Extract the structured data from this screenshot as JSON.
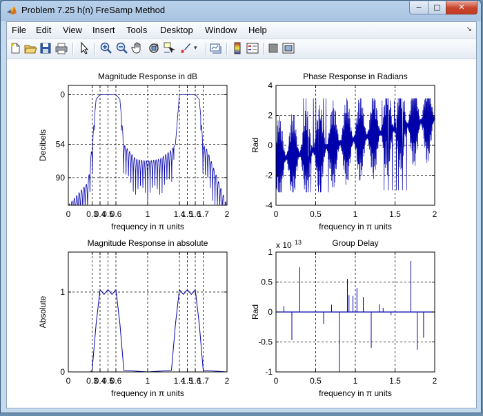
{
  "window": {
    "title": "Problem 7.25 h(n) FreSamp Method",
    "min_label": "−",
    "max_label": "□",
    "close_label": "✕"
  },
  "menubar": {
    "items": [
      "File",
      "Edit",
      "View",
      "Insert",
      "Tools",
      "Desktop",
      "Window",
      "Help"
    ]
  },
  "toolbar": {
    "icons": [
      "new-figure-icon",
      "open-file-icon",
      "save-icon",
      "print-icon",
      "edit-plot-arrow-icon",
      "zoom-in-icon",
      "zoom-out-icon",
      "pan-hand-icon",
      "rotate-3d-icon",
      "data-cursor-icon",
      "brush-icon",
      "brush-dropdown-icon",
      "link-plot-icon",
      "insert-colorbar-icon",
      "insert-legend-icon",
      "hide-plot-tools-icon",
      "show-plot-tools-icon"
    ]
  },
  "colors": {
    "line": "#0000aa",
    "grid": "#000000"
  },
  "chart_data": [
    {
      "type": "line",
      "title": "Magnitude Response in dB",
      "xlabel": "frequency in π units",
      "ylabel": "Decibels",
      "xlim": [
        0,
        2
      ],
      "ylim": [
        -120,
        10
      ],
      "xticks": [
        0,
        0.3,
        0.4,
        0.5,
        0.6,
        1,
        1.4,
        1.5,
        1.6,
        1.7,
        2
      ],
      "xtick_labels": [
        "0",
        "0.3",
        "0.4",
        "0.5",
        "0.6",
        "1",
        "1.4",
        "1.5",
        "1.6",
        "1.7",
        "2"
      ],
      "yticks": [
        0,
        -54,
        -90
      ],
      "ytick_labels": [
        "0",
        "54",
        "90"
      ],
      "grid": true,
      "description_points": {
        "x": [
          0,
          0.25,
          0.3,
          0.35,
          0.4,
          0.5,
          0.6,
          0.65,
          0.7,
          0.85,
          1.0,
          1.15,
          1.3,
          1.35,
          1.4,
          1.5,
          1.6,
          1.65,
          1.7,
          1.75,
          2.0
        ],
        "y": [
          -120,
          -95,
          -54,
          -5,
          0,
          0,
          0,
          -5,
          -54,
          -70,
          -72,
          -70,
          -60,
          -54,
          0,
          0,
          0,
          -5,
          -54,
          -60,
          -120
        ]
      }
    },
    {
      "type": "line",
      "title": "Phase Response in Radians",
      "xlabel": "frequency in π units",
      "ylabel": "Rad",
      "xlim": [
        0,
        2
      ],
      "ylim": [
        -4,
        4
      ],
      "xticks": [
        0,
        0.5,
        1,
        1.5,
        2
      ],
      "xtick_labels": [
        "0",
        "0.5",
        "1",
        "1.5",
        "2"
      ],
      "yticks": [
        4,
        2,
        0,
        -2,
        -4
      ],
      "ytick_labels": [
        "4",
        "2",
        "0",
        "-2",
        "-4"
      ],
      "grid": true
    },
    {
      "type": "line",
      "title": "Magnitude Response in absolute",
      "xlabel": "frequency in π units",
      "ylabel": "Absolute",
      "xlim": [
        0,
        2
      ],
      "ylim": [
        0,
        1.5
      ],
      "xticks": [
        0,
        0.3,
        0.4,
        0.5,
        0.6,
        1,
        1.4,
        1.5,
        1.6,
        1.7,
        2
      ],
      "xtick_labels": [
        "0",
        "0.3",
        "0.4",
        "0.5",
        "0.6",
        "1",
        "1.4",
        "1.5",
        "1.6",
        "1.7",
        "2"
      ],
      "yticks": [
        1,
        0
      ],
      "ytick_labels": [
        "1",
        "0"
      ],
      "grid": true,
      "x": [
        0,
        0.28,
        0.3,
        0.35,
        0.4,
        0.45,
        0.5,
        0.55,
        0.6,
        0.65,
        0.7,
        1.0,
        1.3,
        1.35,
        1.4,
        1.45,
        1.5,
        1.55,
        1.6,
        1.65,
        1.7,
        2.0
      ],
      "y": [
        0,
        0,
        0.02,
        0.6,
        1.03,
        0.97,
        1.03,
        0.97,
        1.03,
        0.6,
        0.02,
        0,
        0.02,
        0.6,
        1.03,
        0.97,
        1.03,
        0.97,
        1.03,
        0.6,
        0.02,
        0
      ]
    },
    {
      "type": "bar",
      "title": "Group Delay",
      "xlabel": "frequency in π units",
      "ylabel": "Rad",
      "exponent_label": "x 10",
      "exponent_power": "13",
      "xlim": [
        0,
        2
      ],
      "ylim": [
        -1,
        1
      ],
      "xticks": [
        0,
        0.5,
        1,
        1.5,
        2
      ],
      "xtick_labels": [
        "0",
        "0.5",
        "1",
        "1.5",
        "2"
      ],
      "yticks": [
        1,
        0.5,
        0,
        -0.5,
        -1
      ],
      "ytick_labels": [
        "1",
        "0.5",
        "0",
        "-0.5",
        "-1"
      ],
      "grid": true,
      "x": [
        0.1,
        0.2,
        0.3,
        0.6,
        0.7,
        0.8,
        0.9,
        0.92,
        0.97,
        1.02,
        1.1,
        1.2,
        1.3,
        1.35,
        1.45,
        1.7,
        1.78,
        1.86
      ],
      "values": [
        0.1,
        -0.47,
        0.75,
        -0.2,
        0.12,
        -1.0,
        0.55,
        0.28,
        0.27,
        0.4,
        0.25,
        -0.6,
        0.13,
        0.07,
        -0.05,
        0.85,
        -0.63,
        -0.43
      ]
    }
  ]
}
